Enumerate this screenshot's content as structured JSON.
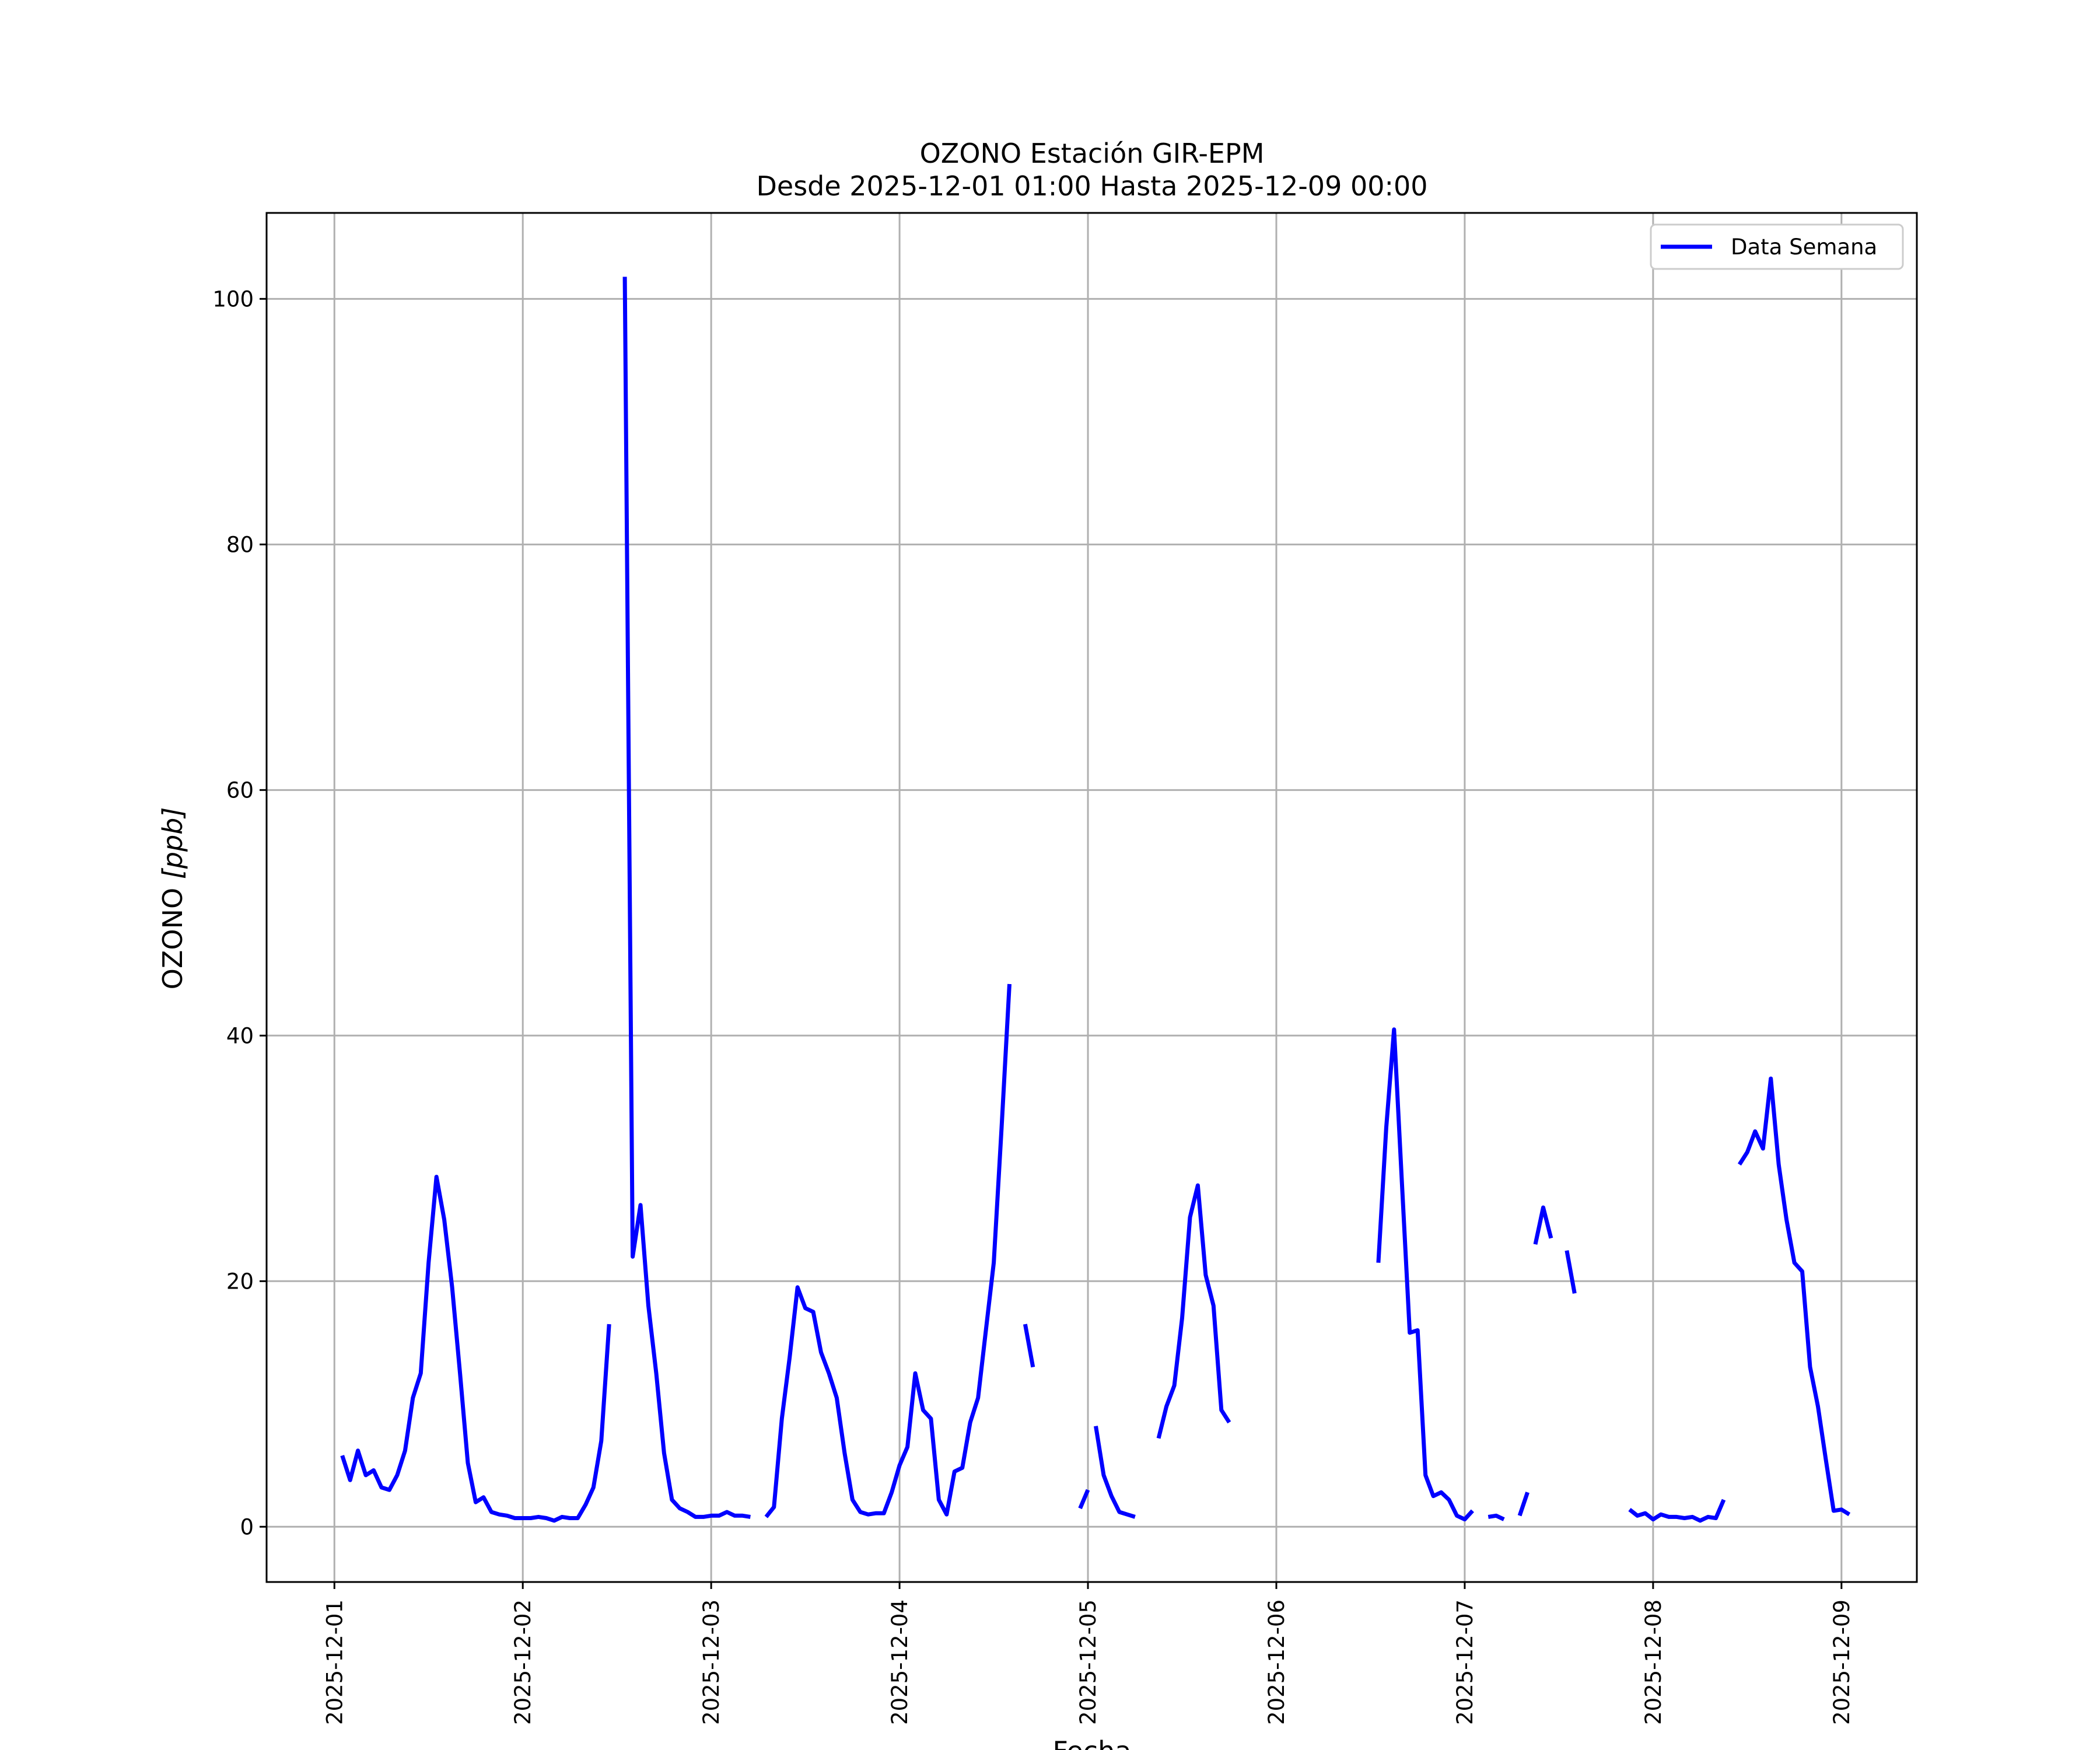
{
  "chart_data": {
    "type": "line",
    "title": "OZONO Estación GIR-EPM",
    "subtitle": "Desde 2025-12-01 01:00 Hasta 2025-12-09 00:00",
    "xlabel": "Fecha",
    "ylabel": "OZONO [ppb]",
    "ylabel_prefix": "OZONO ",
    "ylabel_unit": "[ppb]",
    "x_range_days": [
      -0.36,
      8.4
    ],
    "ylim": [
      -4.5,
      107
    ],
    "x_ticks": [
      {
        "day": 0,
        "label": "2025-12-01"
      },
      {
        "day": 1,
        "label": "2025-12-02"
      },
      {
        "day": 2,
        "label": "2025-12-03"
      },
      {
        "day": 3,
        "label": "2025-12-04"
      },
      {
        "day": 4,
        "label": "2025-12-05"
      },
      {
        "day": 5,
        "label": "2025-12-06"
      },
      {
        "day": 6,
        "label": "2025-12-07"
      },
      {
        "day": 7,
        "label": "2025-12-08"
      },
      {
        "day": 8,
        "label": "2025-12-09"
      }
    ],
    "y_ticks": [
      0,
      20,
      40,
      60,
      80,
      100
    ],
    "grid": true,
    "legend": {
      "position": "top-right",
      "entries": [
        "Data Semana"
      ]
    },
    "color": "#0000ff",
    "series": [
      {
        "name": "Data Semana",
        "segments": [
          [
            [
              1,
              5.8
            ],
            [
              2,
              3.8
            ],
            [
              3,
              6.2
            ],
            [
              4,
              4.2
            ],
            [
              5,
              4.6
            ],
            [
              6,
              3.2
            ],
            [
              7,
              3.0
            ],
            [
              8,
              4.2
            ],
            [
              9,
              6.2
            ],
            [
              10,
              10.5
            ],
            [
              11,
              12.5
            ],
            [
              12,
              21.5
            ],
            [
              13,
              28.5
            ],
            [
              14,
              25.0
            ],
            [
              15,
              19.5
            ],
            [
              16,
              12.5
            ],
            [
              17,
              5.2
            ],
            [
              18,
              2.0
            ],
            [
              19,
              2.4
            ],
            [
              20,
              1.2
            ],
            [
              21,
              1.0
            ],
            [
              22,
              0.9
            ],
            [
              23,
              0.7
            ],
            [
              24,
              0.7
            ],
            [
              25,
              0.7
            ],
            [
              26,
              0.8
            ],
            [
              27,
              0.7
            ],
            [
              28,
              0.5
            ],
            [
              29,
              0.8
            ],
            [
              30,
              0.7
            ],
            [
              31,
              0.7
            ],
            [
              32,
              1.8
            ],
            [
              33,
              3.2
            ],
            [
              34,
              7.0
            ],
            [
              35,
              16.5
            ]
          ],
          [
            [
              37,
              101.8
            ],
            [
              38,
              22.0
            ],
            [
              39,
              26.2
            ],
            [
              40,
              18.0
            ],
            [
              41,
              12.5
            ],
            [
              42,
              6.0
            ],
            [
              43,
              2.2
            ],
            [
              44,
              1.5
            ],
            [
              45,
              1.2
            ],
            [
              46,
              0.8
            ],
            [
              47,
              0.8
            ],
            [
              48,
              0.9
            ],
            [
              49,
              0.9
            ],
            [
              50,
              1.2
            ],
            [
              51,
              0.9
            ],
            [
              52,
              0.9
            ],
            [
              53,
              0.8
            ]
          ],
          [
            [
              55,
              0.8
            ],
            [
              56,
              1.6
            ],
            [
              57,
              8.8
            ],
            [
              58,
              13.8
            ],
            [
              59,
              19.5
            ],
            [
              60,
              17.8
            ],
            [
              61,
              17.5
            ],
            [
              62,
              14.2
            ],
            [
              63,
              12.5
            ],
            [
              64,
              10.5
            ],
            [
              65,
              6.0
            ],
            [
              66,
              2.2
            ],
            [
              67,
              1.2
            ],
            [
              68,
              1.0
            ],
            [
              69,
              1.1
            ],
            [
              70,
              1.1
            ],
            [
              71,
              2.8
            ],
            [
              72,
              5.0
            ],
            [
              73,
              6.5
            ],
            [
              74,
              12.5
            ],
            [
              75,
              9.5
            ],
            [
              76,
              8.8
            ],
            [
              77,
              2.2
            ],
            [
              78,
              1.0
            ],
            [
              79,
              4.5
            ],
            [
              80,
              4.8
            ],
            [
              81,
              8.5
            ],
            [
              82,
              10.5
            ],
            [
              83,
              16.0
            ],
            [
              84,
              21.5
            ],
            [
              85,
              32.5
            ],
            [
              86,
              44.2
            ]
          ],
          [
            [
              88,
              16.5
            ],
            [
              89,
              13.0
            ]
          ],
          [
            [
              95,
              1.5
            ],
            [
              96,
              3.0
            ]
          ],
          [
            [
              97,
              8.2
            ],
            [
              98,
              4.2
            ],
            [
              99,
              2.5
            ],
            [
              100,
              1.2
            ],
            [
              101,
              1.0
            ],
            [
              102,
              0.8
            ]
          ],
          [
            [
              105,
              7.2
            ],
            [
              106,
              9.8
            ],
            [
              107,
              11.5
            ],
            [
              108,
              17.0
            ],
            [
              109,
              25.2
            ],
            [
              110,
              27.8
            ],
            [
              111,
              20.5
            ],
            [
              112,
              18.0
            ],
            [
              113,
              9.5
            ],
            [
              114,
              8.5
            ]
          ],
          [
            [
              133,
              21.5
            ],
            [
              134,
              32.5
            ],
            [
              135,
              40.5
            ],
            [
              136,
              28.0
            ],
            [
              137,
              15.8
            ],
            [
              138,
              16.0
            ],
            [
              139,
              4.2
            ],
            [
              140,
              2.5
            ],
            [
              141,
              2.8
            ],
            [
              142,
              2.2
            ],
            [
              143,
              0.9
            ],
            [
              144,
              0.6
            ],
            [
              145,
              1.3
            ]
          ],
          [
            [
              147,
              0.8
            ],
            [
              148,
              0.9
            ],
            [
              149,
              0.6
            ]
          ],
          [
            [
              151,
              0.9
            ],
            [
              152,
              2.8
            ]
          ],
          [
            [
              153,
              23.0
            ],
            [
              154,
              26.0
            ],
            [
              155,
              23.5
            ]
          ],
          [
            [
              157,
              22.5
            ],
            [
              158,
              19.0
            ]
          ],
          [
            [
              165,
              1.4
            ],
            [
              166,
              0.9
            ],
            [
              167,
              1.1
            ],
            [
              168,
              0.6
            ],
            [
              169,
              1.0
            ],
            [
              170,
              0.8
            ],
            [
              171,
              0.8
            ],
            [
              172,
              0.7
            ],
            [
              173,
              0.8
            ],
            [
              174,
              0.5
            ],
            [
              175,
              0.8
            ],
            [
              176,
              0.7
            ],
            [
              177,
              2.2
            ]
          ],
          [
            [
              179,
              29.5
            ],
            [
              180,
              30.5
            ],
            [
              181,
              32.2
            ],
            [
              182,
              30.8
            ],
            [
              183,
              36.5
            ],
            [
              184,
              29.5
            ],
            [
              185,
              25.0
            ],
            [
              186,
              21.5
            ],
            [
              187,
              20.8
            ],
            [
              188,
              13.0
            ],
            [
              189,
              9.8
            ],
            [
              190,
              5.5
            ],
            [
              191,
              1.3
            ],
            [
              192,
              1.4
            ],
            [
              193,
              1.0
            ]
          ]
        ]
      }
    ]
  }
}
